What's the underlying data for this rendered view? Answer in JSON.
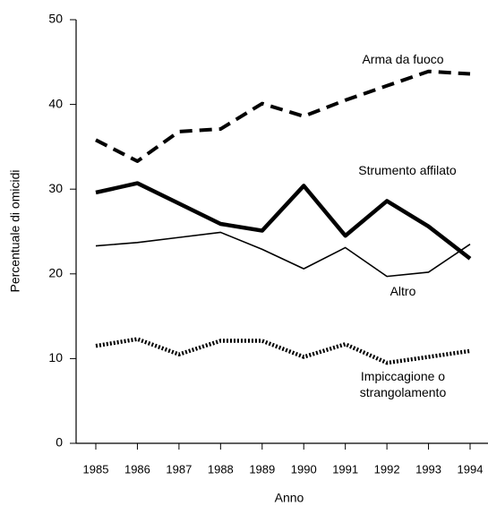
{
  "chart_data": {
    "type": "line",
    "x_label": "Anno",
    "y_label": "Percentuale di omicidi",
    "categories": [
      "1985",
      "1986",
      "1987",
      "1988",
      "1989",
      "1990",
      "1991",
      "1992",
      "1993",
      "1994"
    ],
    "series": [
      {
        "name": "Arma da fuoco",
        "color": "#000000",
        "style": "dashed",
        "values": [
          35.8,
          33.3,
          36.8,
          37.1,
          40.1,
          38.6,
          40.5,
          42.2,
          43.9,
          43.6
        ]
      },
      {
        "name": "Strumento affilato",
        "color": "#000000",
        "style": "thick",
        "values": [
          29.6,
          30.7,
          28.3,
          25.9,
          25.1,
          30.4,
          24.5,
          28.6,
          25.6,
          21.8
        ]
      },
      {
        "name": "Altro",
        "color": "#000000",
        "style": "thin",
        "values": [
          23.3,
          23.7,
          24.3,
          24.9,
          22.9,
          20.6,
          23.1,
          19.7,
          20.2,
          23.5
        ]
      },
      {
        "name": "Impiccagione o strangolamento",
        "color": "#000000",
        "style": "dotted",
        "values": [
          11.5,
          12.3,
          10.5,
          12.1,
          12.1,
          10.2,
          11.7,
          9.5,
          10.2,
          10.9
        ]
      }
    ],
    "ylim": [
      0,
      50
    ],
    "yticks": [
      0,
      10,
      20,
      30,
      40,
      50
    ],
    "grid": false
  }
}
